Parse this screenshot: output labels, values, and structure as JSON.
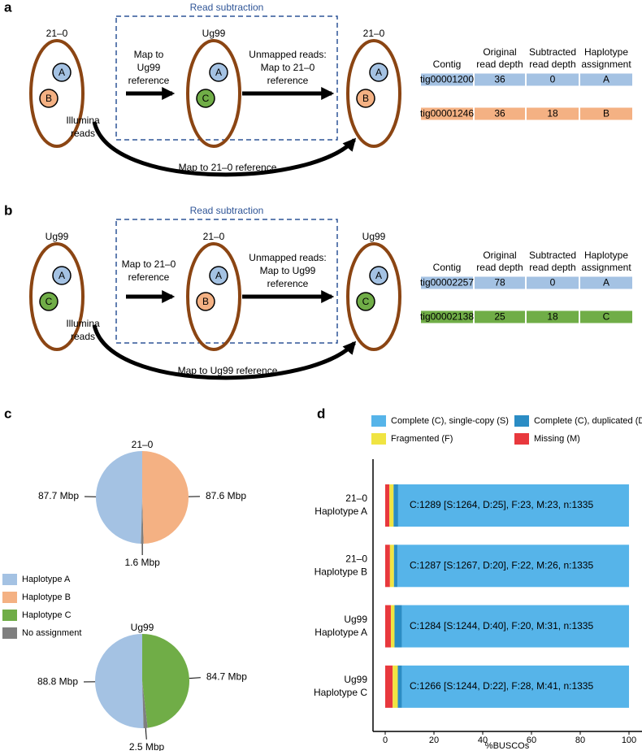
{
  "diagram_a": {
    "label": "a",
    "box_title": "Read subtraction",
    "organisms": [
      {
        "name": "21–0",
        "nuclei": [
          {
            "label": "A",
            "color": "#a4c2e3"
          },
          {
            "label": "B",
            "color": "#f4b183"
          }
        ]
      },
      {
        "name": "Ug99",
        "nuclei": [
          {
            "label": "A",
            "color": "#a4c2e3"
          },
          {
            "label": "C",
            "color": "#70ad47"
          }
        ]
      },
      {
        "name": "21–0",
        "nuclei": [
          {
            "label": "A",
            "color": "#a4c2e3"
          },
          {
            "label": "B",
            "color": "#f4b183"
          }
        ]
      }
    ],
    "illumina": [
      "Illumina",
      "reads"
    ],
    "step1": [
      "Map to",
      "Ug99",
      "reference"
    ],
    "step2": [
      "Unmapped reads:",
      "Map to 21–0",
      "reference"
    ],
    "curve_label": "Map to 21–0 reference",
    "table": {
      "header": [
        [
          "Contig"
        ],
        [
          "Original",
          "read depth"
        ],
        [
          "Subtracted",
          "read depth"
        ],
        [
          "Haplotype",
          "assignment"
        ]
      ],
      "rows": [
        [
          "tig00001200",
          36,
          0,
          "A"
        ],
        [
          "tig00001246",
          36,
          18,
          "B"
        ]
      ],
      "row_colors": [
        "#a4c2e3",
        "#f4b183"
      ]
    }
  },
  "diagram_b": {
    "label": "b",
    "box_title": "Read subtraction",
    "organisms": [
      {
        "name": "Ug99",
        "nuclei": [
          {
            "label": "A",
            "color": "#a4c2e3"
          },
          {
            "label": "C",
            "color": "#70ad47"
          }
        ]
      },
      {
        "name": "21–0",
        "nuclei": [
          {
            "label": "A",
            "color": "#a4c2e3"
          },
          {
            "label": "B",
            "color": "#f4b183"
          }
        ]
      },
      {
        "name": "Ug99",
        "nuclei": [
          {
            "label": "A",
            "color": "#a4c2e3"
          },
          {
            "label": "C",
            "color": "#70ad47"
          }
        ]
      }
    ],
    "illumina": [
      "Illumina",
      "reads"
    ],
    "step1": [
      "Map to 21–0",
      "reference"
    ],
    "step2": [
      "Unmapped reads:",
      "Map to Ug99",
      "reference"
    ],
    "curve_label": "Map to Ug99 reference",
    "table": {
      "header": [
        [
          "Contig"
        ],
        [
          "Original",
          "read depth"
        ],
        [
          "Subtracted",
          "read depth"
        ],
        [
          "Haplotype",
          "assignment"
        ]
      ],
      "rows": [
        [
          "tig00002257",
          78,
          0,
          "A"
        ],
        [
          "tig00002138",
          25,
          18,
          "C"
        ]
      ],
      "row_colors": [
        "#a4c2e3",
        "#70ad47"
      ]
    }
  },
  "panel_c_label": "c",
  "panel_d_label": "d",
  "pie_legend": {
    "labels": [
      "Haplotype A",
      "Haplotype B",
      "Haplotype C",
      "No assignment"
    ],
    "colors": [
      "#a4c2e3",
      "#f4b183",
      "#70ad47",
      "#7f7f7f"
    ]
  },
  "chart_data": [
    {
      "type": "pie",
      "title": "21–0",
      "categories": [
        "Haplotype A",
        "No assignment",
        "Haplotype B"
      ],
      "values": [
        87.7,
        1.6,
        87.6
      ],
      "value_labels": [
        "87.7 Mbp",
        "1.6 Mbp",
        "87.6 Mbp"
      ],
      "colors": [
        "#a4c2e3",
        "#7f7f7f",
        "#f4b183"
      ]
    },
    {
      "type": "pie",
      "title": "Ug99",
      "categories": [
        "Haplotype A",
        "No assignment",
        "Haplotype C"
      ],
      "values": [
        88.8,
        2.5,
        84.7
      ],
      "value_labels": [
        "88.8 Mbp",
        "2.5 Mbp",
        "84.7 Mbp"
      ],
      "colors": [
        "#a4c2e3",
        "#7f7f7f",
        "#70ad47"
      ]
    },
    {
      "type": "stacked_barh",
      "xlabel": "%BUSCOs",
      "categories": [
        [
          "21–0",
          "Haplotype A"
        ],
        [
          "21–0",
          "Haplotype B"
        ],
        [
          "Ug99",
          "Haplotype A"
        ],
        [
          "Ug99",
          "Haplotype C"
        ]
      ],
      "series": [
        {
          "name": "Complete (C), single-copy (S)",
          "color": "#56b4e9",
          "values": [
            94.68,
            94.91,
            93.18,
            93.18
          ]
        },
        {
          "name": "Complete (C), duplicated (D)",
          "color": "#2b8cc4",
          "values": [
            1.87,
            1.5,
            3.0,
            1.65
          ]
        },
        {
          "name": "Fragmented (F)",
          "color": "#f0e442",
          "values": [
            1.72,
            1.65,
            1.5,
            2.1
          ]
        },
        {
          "name": "Missing (M)",
          "color": "#e8383d",
          "values": [
            1.72,
            1.95,
            2.32,
            3.07
          ]
        }
      ],
      "annotations": [
        "C:1289 [S:1264, D:25], F:23, M:23, n:1335",
        "C:1287 [S:1267, D:20], F:22, M:26, n:1335",
        "C:1284 [S:1244, D:40], F:20, M:31, n:1335",
        "C:1266 [S:1244, D:22], F:28, M:41, n:1335"
      ],
      "xlim": [
        0,
        100
      ],
      "xticks": [
        0,
        20,
        40,
        60,
        80,
        100
      ]
    }
  ]
}
